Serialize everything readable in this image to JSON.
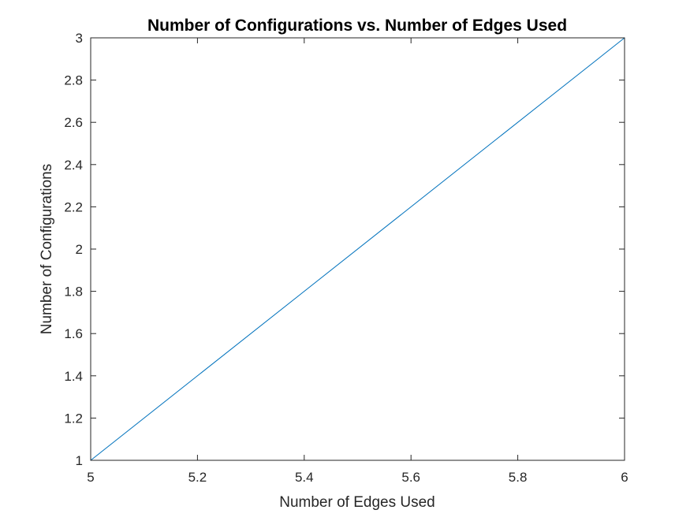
{
  "chart_data": {
    "type": "line",
    "title": "Number of Configurations vs. Number of Edges Used",
    "xlabel": "Number of Edges Used",
    "ylabel": "Number of Configurations",
    "xlim": [
      5,
      6
    ],
    "ylim": [
      1,
      3
    ],
    "xticks": [
      "5",
      "5.2",
      "5.4",
      "5.6",
      "5.8",
      "6"
    ],
    "yticks": [
      "1",
      "1.2",
      "1.4",
      "1.6",
      "1.8",
      "2",
      "2.2",
      "2.4",
      "2.6",
      "2.8",
      "3"
    ],
    "grid": false,
    "series": [
      {
        "x": [
          5,
          6
        ],
        "y": [
          1,
          3
        ],
        "color": "#0072BD"
      }
    ]
  }
}
